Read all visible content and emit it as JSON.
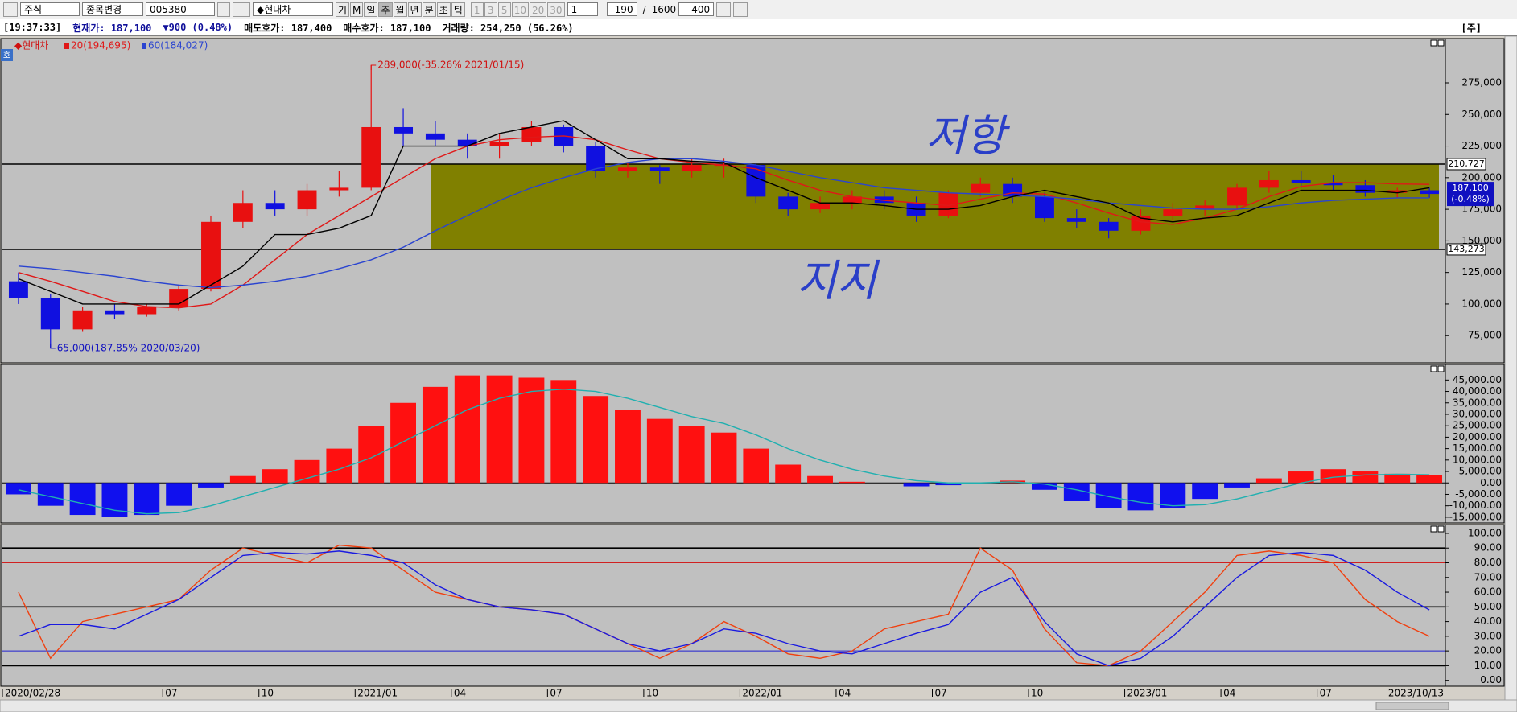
{
  "toolbar": {
    "market": "주식",
    "change": "종목변경",
    "code": "005380",
    "name": "◆현대차",
    "buttons": [
      "기",
      "M",
      "일",
      "주",
      "월",
      "년",
      "분",
      "초",
      "틱"
    ],
    "intervals": [
      "1",
      "3",
      "5",
      "10",
      "20",
      "30"
    ],
    "unit": "1",
    "count": "190",
    "sep": "/",
    "total": "1600",
    "zoom": "400"
  },
  "info_bar": {
    "time": "[19:37:33]",
    "price": "현재가: 187,100",
    "change": "▼900 (0.48%)",
    "ask": "매도호가: 187,400",
    "bid": "매수호가: 187,100",
    "volume": "거래량: 254,250 (56.26%)",
    "tag": "[주]"
  },
  "side_tag": "호",
  "chart_data": [
    {
      "type": "candlestick",
      "title": "◆현대차",
      "up_color": "#e81010",
      "down_color": "#1010e0",
      "open": [
        118000,
        105000,
        80000,
        95000,
        92000,
        98000,
        112000,
        165000,
        180000,
        175000,
        190000,
        192000,
        240000,
        235000,
        230000,
        225000,
        228000,
        240000,
        225000,
        205000,
        208000,
        205000,
        210000,
        210000,
        185000,
        175000,
        180000,
        185000,
        180000,
        170000,
        188000,
        195000,
        185000,
        168000,
        165000,
        158000,
        170000,
        175000,
        178000,
        192000,
        198000,
        196000,
        194000,
        188000,
        190000
      ],
      "high": [
        125000,
        108000,
        98000,
        100000,
        100000,
        115000,
        170000,
        190000,
        190000,
        195000,
        205000,
        289000,
        255000,
        245000,
        235000,
        235000,
        245000,
        242000,
        228000,
        212000,
        210000,
        215000,
        215000,
        212000,
        188000,
        185000,
        190000,
        190000,
        185000,
        190000,
        200000,
        200000,
        188000,
        175000,
        168000,
        175000,
        180000,
        182000,
        195000,
        205000,
        205000,
        202000,
        198000,
        192000,
        192000
      ],
      "low": [
        100000,
        65000,
        78000,
        88000,
        90000,
        95000,
        110000,
        160000,
        170000,
        170000,
        185000,
        190000,
        225000,
        225000,
        215000,
        215000,
        225000,
        220000,
        200000,
        200000,
        195000,
        200000,
        200000,
        180000,
        170000,
        172000,
        175000,
        175000,
        165000,
        168000,
        185000,
        180000,
        165000,
        160000,
        152000,
        155000,
        165000,
        170000,
        175000,
        188000,
        192000,
        190000,
        185000,
        184000,
        184000
      ],
      "close": [
        105000,
        80000,
        95000,
        92000,
        98000,
        112000,
        165000,
        180000,
        175000,
        190000,
        192000,
        240000,
        235000,
        230000,
        225000,
        228000,
        240000,
        225000,
        205000,
        208000,
        205000,
        210000,
        210000,
        185000,
        175000,
        180000,
        185000,
        180000,
        170000,
        188000,
        195000,
        185000,
        168000,
        165000,
        158000,
        170000,
        175000,
        178000,
        192000,
        198000,
        196000,
        194000,
        188000,
        190000,
        187100
      ],
      "series": [
        {
          "name": "20(194,695)",
          "color": "#e01818",
          "values": [
            125000,
            118000,
            110000,
            102000,
            98000,
            97000,
            100000,
            115000,
            135000,
            155000,
            170000,
            185000,
            200000,
            215000,
            225000,
            230000,
            232000,
            233000,
            230000,
            222000,
            215000,
            212000,
            210000,
            207000,
            198000,
            190000,
            185000,
            182000,
            180000,
            178000,
            183000,
            188000,
            187000,
            180000,
            172000,
            165000,
            163000,
            168000,
            175000,
            185000,
            193000,
            196000,
            196000,
            195000,
            194695
          ]
        },
        {
          "name": "60(184,027)",
          "color": "#2a44d0",
          "values": [
            130000,
            128000,
            125000,
            122000,
            118000,
            115000,
            113000,
            115000,
            118000,
            122000,
            128000,
            135000,
            145000,
            158000,
            170000,
            182000,
            192000,
            200000,
            207000,
            212000,
            215000,
            215000,
            213000,
            210000,
            205000,
            200000,
            196000,
            192000,
            190000,
            188000,
            187000,
            186000,
            185000,
            183000,
            180000,
            178000,
            176000,
            175000,
            175000,
            177000,
            180000,
            182000,
            183000,
            184000,
            184027
          ]
        },
        {
          "color": "#000000",
          "values": [
            120000,
            110000,
            100000,
            100000,
            100000,
            100000,
            115000,
            130000,
            155000,
            155000,
            160000,
            170000,
            225000,
            225000,
            225000,
            235000,
            240000,
            245000,
            230000,
            215000,
            215000,
            213000,
            212000,
            200000,
            190000,
            180000,
            180000,
            178000,
            175000,
            175000,
            178000,
            185000,
            190000,
            185000,
            180000,
            168000,
            165000,
            168000,
            170000,
            180000,
            190000,
            190000,
            190000,
            188000,
            192000
          ]
        }
      ],
      "ylim": [
        53500,
        310000
      ],
      "yticks": [
        {
          "value": 75000,
          "label": "75,000"
        },
        {
          "value": 100000,
          "label": "100,000"
        },
        {
          "value": 125000,
          "label": "125,000"
        },
        {
          "value": 150000,
          "label": "150,000"
        },
        {
          "value": 175000,
          "label": "175,000"
        },
        {
          "value": 200000,
          "label": "200,000"
        },
        {
          "value": 225000,
          "label": "225,000"
        },
        {
          "value": 250000,
          "label": "250,000"
        },
        {
          "value": 275000,
          "label": "275,000"
        }
      ],
      "hlines": [
        {
          "value": 210727,
          "label": "210,727"
        },
        {
          "value": 143273,
          "label": "143,273"
        }
      ],
      "zone_color": "#808000",
      "last_label": {
        "value": 187100,
        "label": "187,100"
      },
      "last_change": "(-0.48%)",
      "high_label": "289,000(-35.26% 2021/01/15)",
      "low_label": "65,000(187.85% 2020/03/20)",
      "annotations": [
        "저항",
        "지지"
      ]
    },
    {
      "type": "bar",
      "pos_color": "#ff1010",
      "neg_color": "#1010ee",
      "values": [
        -5000,
        -10000,
        -14000,
        -15000,
        -14000,
        -10000,
        -2000,
        3000,
        6000,
        10000,
        15000,
        25000,
        35000,
        42000,
        47000,
        47000,
        46000,
        45000,
        38000,
        32000,
        28000,
        25000,
        22000,
        15000,
        8000,
        3000,
        500,
        0,
        -1500,
        -1000,
        0,
        1000,
        -3000,
        -8000,
        -11000,
        -12000,
        -11000,
        -7000,
        -2000,
        2000,
        5000,
        6000,
        5000,
        4000,
        3500
      ],
      "series": [
        {
          "color": "#20b0b0",
          "values": [
            -3000,
            -6000,
            -9000,
            -12000,
            -13500,
            -13000,
            -10000,
            -6000,
            -2000,
            2000,
            6000,
            11000,
            18000,
            25000,
            32000,
            37000,
            40000,
            41000,
            40000,
            37000,
            33000,
            29000,
            26000,
            21000,
            15000,
            10000,
            6000,
            3000,
            1000,
            0,
            0,
            500,
            -500,
            -3000,
            -6000,
            -8500,
            -10000,
            -9500,
            -7000,
            -3500,
            0,
            2500,
            3500,
            3800,
            3600
          ]
        }
      ],
      "ylim": [
        -17500,
        51800
      ],
      "yticks": [
        {
          "value": -15000,
          "label": "-15,000.00"
        },
        {
          "value": -10000,
          "label": "-10,000.00"
        },
        {
          "value": -5000,
          "label": "-5,000.00"
        },
        {
          "value": 0,
          "label": "0.00"
        },
        {
          "value": 5000,
          "label": "5,000.00"
        },
        {
          "value": 10000,
          "label": "10,000.00"
        },
        {
          "value": 15000,
          "label": "15,000.00"
        },
        {
          "value": 20000,
          "label": "20,000.00"
        },
        {
          "value": 25000,
          "label": "25,000.00"
        },
        {
          "value": 30000,
          "label": "30,000.00"
        },
        {
          "value": 35000,
          "label": "35,000.00"
        },
        {
          "value": 40000,
          "label": "40,000.00"
        },
        {
          "value": 45000,
          "label": "45,000.00"
        }
      ]
    },
    {
      "type": "line",
      "categories": [
        "2020/02/28",
        null,
        null,
        null,
        null,
        "07",
        null,
        null,
        "10",
        null,
        null,
        "2021/01",
        null,
        null,
        "04",
        null,
        null,
        "07",
        null,
        null,
        "10",
        null,
        null,
        "2022/01",
        null,
        null,
        "04",
        null,
        null,
        "07",
        null,
        null,
        "10",
        null,
        null,
        "2023/01",
        null,
        null,
        "04",
        null,
        null,
        "07",
        null,
        null,
        "2023/10/13"
      ],
      "series": [
        {
          "color": "#f04010",
          "values": [
            60,
            15,
            40,
            45,
            50,
            55,
            75,
            90,
            85,
            80,
            92,
            90,
            75,
            60,
            55,
            50,
            48,
            45,
            35,
            25,
            15,
            25,
            40,
            30,
            18,
            15,
            20,
            35,
            40,
            45,
            90,
            75,
            35,
            12,
            10,
            20,
            40,
            60,
            85,
            88,
            85,
            80,
            55,
            40,
            30
          ]
        },
        {
          "color": "#1a1ae0",
          "values": [
            30,
            38,
            38,
            35,
            45,
            55,
            70,
            85,
            87,
            86,
            88,
            85,
            80,
            65,
            55,
            50,
            48,
            45,
            35,
            25,
            20,
            25,
            35,
            32,
            25,
            20,
            18,
            25,
            32,
            38,
            60,
            70,
            40,
            18,
            10,
            15,
            30,
            50,
            70,
            85,
            87,
            85,
            75,
            60,
            48
          ]
        }
      ],
      "hlines": [
        {
          "value": 90,
          "color": "#000000"
        },
        {
          "value": 80,
          "color": "#d02020"
        },
        {
          "value": 50,
          "color": "#000000"
        },
        {
          "value": 20,
          "color": "#2020d0"
        },
        {
          "value": 10,
          "color": "#000000"
        }
      ],
      "ylim": [
        -4,
        106
      ],
      "yticks": [
        {
          "value": 0,
          "label": "0.00"
        },
        {
          "value": 10,
          "label": "10.00"
        },
        {
          "value": 20,
          "label": "20.00"
        },
        {
          "value": 30,
          "label": "30.00"
        },
        {
          "value": 40,
          "label": "40.00"
        },
        {
          "value": 50,
          "label": "50.00"
        },
        {
          "value": 60,
          "label": "60.00"
        },
        {
          "value": 70,
          "label": "70.00"
        },
        {
          "value": 80,
          "label": "80.00"
        },
        {
          "value": 90,
          "label": "90.00"
        },
        {
          "value": 100,
          "label": "100.00"
        }
      ]
    }
  ]
}
